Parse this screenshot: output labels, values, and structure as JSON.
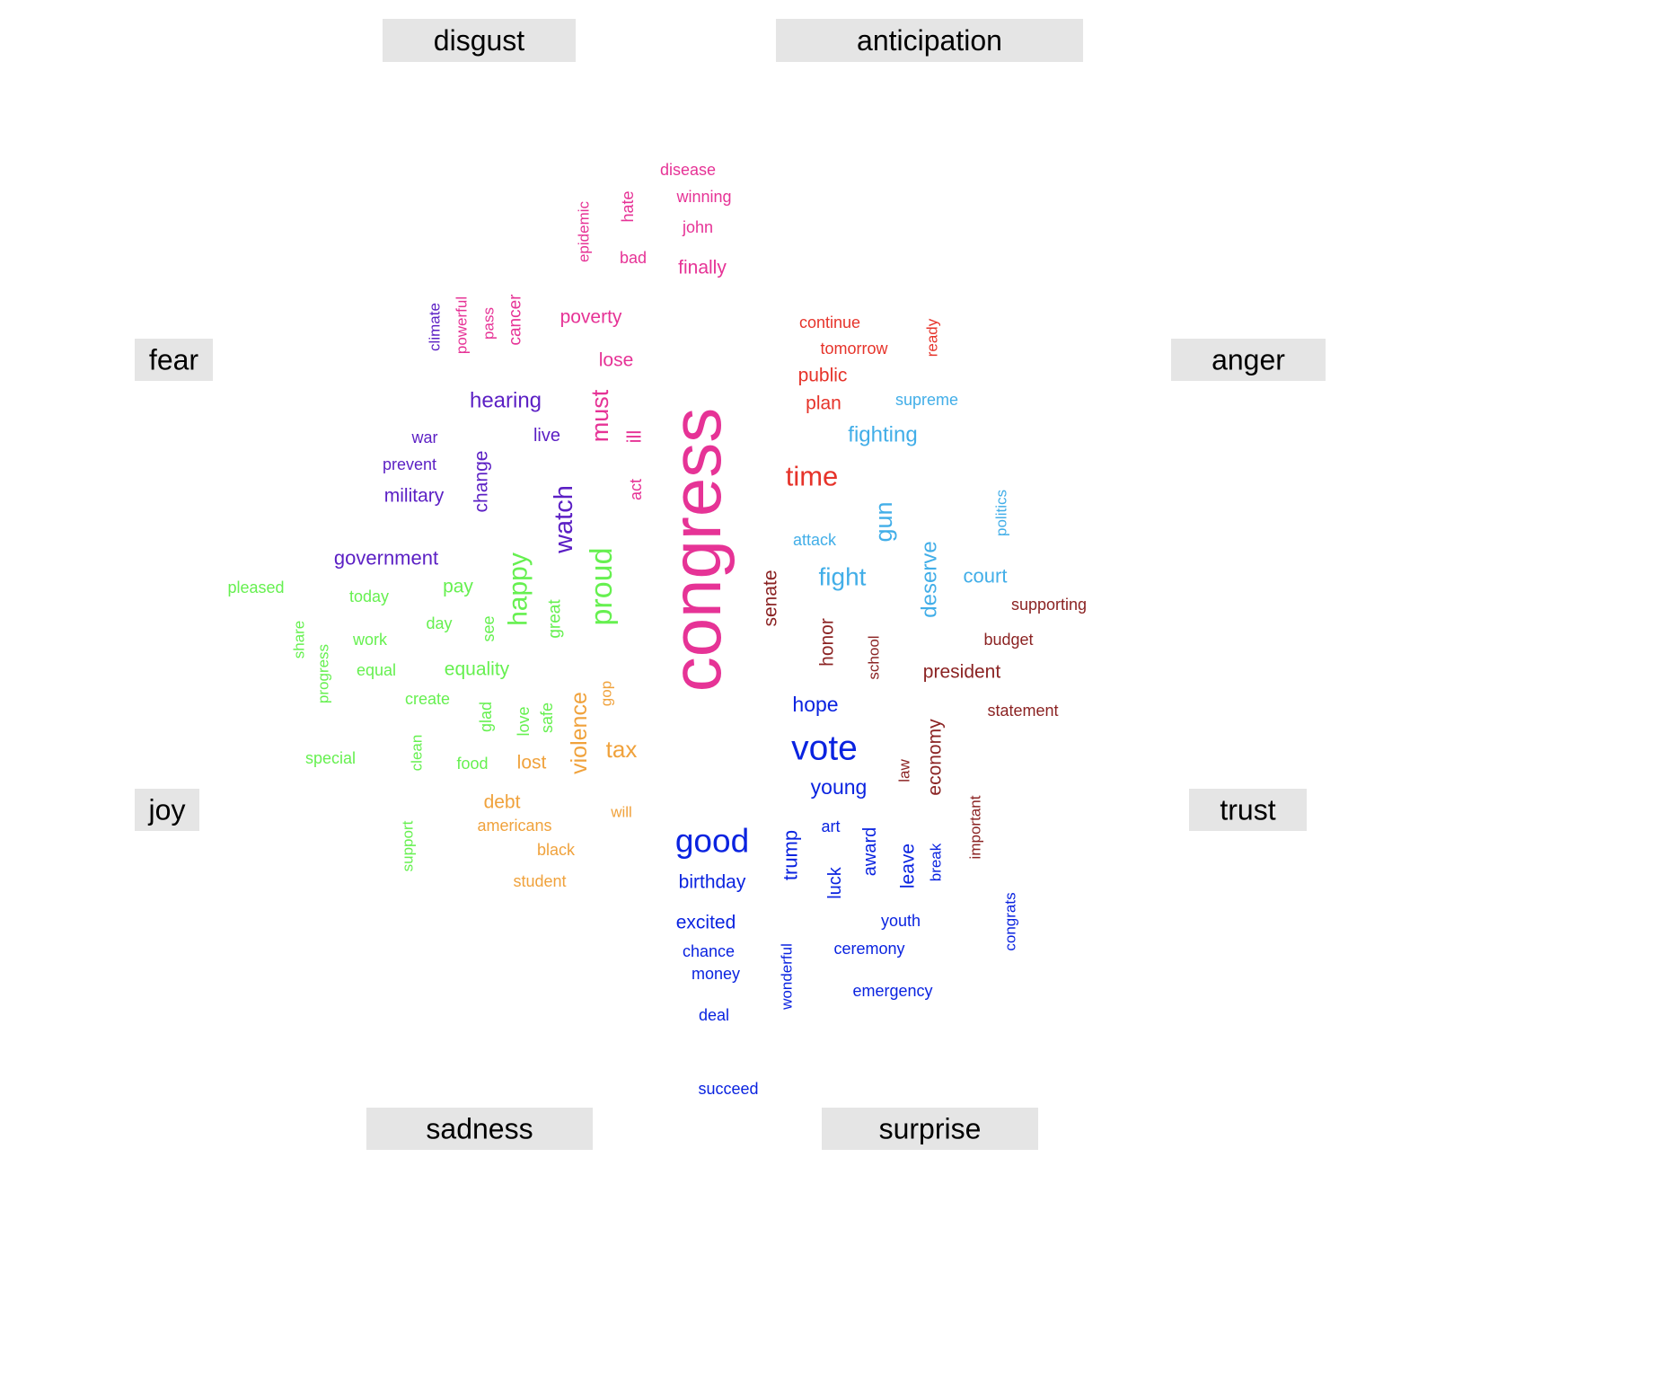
{
  "chart_data": {
    "type": "wordcloud",
    "colors": {
      "fear": "#5b1fc4",
      "disgust": "#e63396",
      "anticipation": "#e6332a",
      "anger": "#42aee8",
      "trust": "#8b2323",
      "surprise": "#0a23e0",
      "sadness": "#f0a23c",
      "joy": "#66f050"
    },
    "categories": [
      {
        "name": "disgust",
        "label": "disgust"
      },
      {
        "name": "anticipation",
        "label": "anticipation"
      },
      {
        "name": "fear",
        "label": "fear"
      },
      {
        "name": "anger",
        "label": "anger"
      },
      {
        "name": "joy",
        "label": "joy"
      },
      {
        "name": "trust",
        "label": "trust"
      },
      {
        "name": "sadness",
        "label": "sadness"
      },
      {
        "name": "surprise",
        "label": "surprise"
      }
    ],
    "words": [
      {
        "text": "congress",
        "group": "disgust",
        "size": 5
      },
      {
        "text": "disease",
        "group": "disgust",
        "size": 1
      },
      {
        "text": "winning",
        "group": "disgust",
        "size": 1
      },
      {
        "text": "hate",
        "group": "disgust",
        "size": 1
      },
      {
        "text": "john",
        "group": "disgust",
        "size": 1
      },
      {
        "text": "epidemic",
        "group": "disgust",
        "size": 1
      },
      {
        "text": "bad",
        "group": "disgust",
        "size": 1
      },
      {
        "text": "finally",
        "group": "disgust",
        "size": 1.3
      },
      {
        "text": "powerful",
        "group": "disgust",
        "size": 1
      },
      {
        "text": "pass",
        "group": "disgust",
        "size": 1
      },
      {
        "text": "cancer",
        "group": "disgust",
        "size": 1.1
      },
      {
        "text": "poverty",
        "group": "disgust",
        "size": 1.3
      },
      {
        "text": "lose",
        "group": "disgust",
        "size": 1.3
      },
      {
        "text": "must",
        "group": "disgust",
        "size": 1.6
      },
      {
        "text": "ill",
        "group": "disgust",
        "size": 1.3
      },
      {
        "text": "act",
        "group": "disgust",
        "size": 1
      },
      {
        "text": "climate",
        "group": "fear",
        "size": 1
      },
      {
        "text": "hearing",
        "group": "fear",
        "size": 1.5
      },
      {
        "text": "live",
        "group": "fear",
        "size": 1.3
      },
      {
        "text": "war",
        "group": "fear",
        "size": 1
      },
      {
        "text": "prevent",
        "group": "fear",
        "size": 1
      },
      {
        "text": "military",
        "group": "fear",
        "size": 1.3
      },
      {
        "text": "change",
        "group": "fear",
        "size": 1.3
      },
      {
        "text": "watch",
        "group": "fear",
        "size": 1.8
      },
      {
        "text": "government",
        "group": "fear",
        "size": 1.4
      },
      {
        "text": "continue",
        "group": "anticipation",
        "size": 1
      },
      {
        "text": "tomorrow",
        "group": "anticipation",
        "size": 1
      },
      {
        "text": "ready",
        "group": "anticipation",
        "size": 1
      },
      {
        "text": "public",
        "group": "anticipation",
        "size": 1.3
      },
      {
        "text": "plan",
        "group": "anticipation",
        "size": 1.3
      },
      {
        "text": "time",
        "group": "anticipation",
        "size": 2
      },
      {
        "text": "supreme",
        "group": "anger",
        "size": 1
      },
      {
        "text": "fighting",
        "group": "anger",
        "size": 1.5
      },
      {
        "text": "politics",
        "group": "anger",
        "size": 1
      },
      {
        "text": "attack",
        "group": "anger",
        "size": 1
      },
      {
        "text": "gun",
        "group": "anger",
        "size": 1.6
      },
      {
        "text": "fight",
        "group": "anger",
        "size": 1.8
      },
      {
        "text": "deserve",
        "group": "anger",
        "size": 1.5
      },
      {
        "text": "court",
        "group": "anger",
        "size": 1.4
      },
      {
        "text": "senate",
        "group": "trust",
        "size": 1.3
      },
      {
        "text": "supporting",
        "group": "trust",
        "size": 1
      },
      {
        "text": "budget",
        "group": "trust",
        "size": 1
      },
      {
        "text": "honor",
        "group": "trust",
        "size": 1.3
      },
      {
        "text": "school",
        "group": "trust",
        "size": 1
      },
      {
        "text": "president",
        "group": "trust",
        "size": 1.3
      },
      {
        "text": "statement",
        "group": "trust",
        "size": 1
      },
      {
        "text": "law",
        "group": "trust",
        "size": 1
      },
      {
        "text": "economy",
        "group": "trust",
        "size": 1.3
      },
      {
        "text": "important",
        "group": "trust",
        "size": 1
      },
      {
        "text": "hope",
        "group": "surprise",
        "size": 1.5
      },
      {
        "text": "vote",
        "group": "surprise",
        "size": 2.5
      },
      {
        "text": "young",
        "group": "surprise",
        "size": 1.5
      },
      {
        "text": "art",
        "group": "surprise",
        "size": 1
      },
      {
        "text": "good",
        "group": "surprise",
        "size": 2.4
      },
      {
        "text": "trump",
        "group": "surprise",
        "size": 1.4
      },
      {
        "text": "award",
        "group": "surprise",
        "size": 1.2
      },
      {
        "text": "leave",
        "group": "surprise",
        "size": 1.3
      },
      {
        "text": "break",
        "group": "surprise",
        "size": 1
      },
      {
        "text": "luck",
        "group": "surprise",
        "size": 1.2
      },
      {
        "text": "birthday",
        "group": "surprise",
        "size": 1.4
      },
      {
        "text": "excited",
        "group": "surprise",
        "size": 1.3
      },
      {
        "text": "youth",
        "group": "surprise",
        "size": 1
      },
      {
        "text": "congrats",
        "group": "surprise",
        "size": 1
      },
      {
        "text": "chance",
        "group": "surprise",
        "size": 1
      },
      {
        "text": "ceremony",
        "group": "surprise",
        "size": 1
      },
      {
        "text": "money",
        "group": "surprise",
        "size": 1
      },
      {
        "text": "wonderful",
        "group": "surprise",
        "size": 1
      },
      {
        "text": "emergency",
        "group": "surprise",
        "size": 1
      },
      {
        "text": "deal",
        "group": "surprise",
        "size": 1
      },
      {
        "text": "succeed",
        "group": "surprise",
        "size": 1
      },
      {
        "text": "gop",
        "group": "sadness",
        "size": 1
      },
      {
        "text": "violence",
        "group": "sadness",
        "size": 1.6
      },
      {
        "text": "tax",
        "group": "sadness",
        "size": 1.7
      },
      {
        "text": "lost",
        "group": "sadness",
        "size": 1.3
      },
      {
        "text": "debt",
        "group": "sadness",
        "size": 1.3
      },
      {
        "text": "americans",
        "group": "sadness",
        "size": 1
      },
      {
        "text": "will",
        "group": "sadness",
        "size": 1
      },
      {
        "text": "black",
        "group": "sadness",
        "size": 1
      },
      {
        "text": "student",
        "group": "sadness",
        "size": 1
      },
      {
        "text": "pleased",
        "group": "joy",
        "size": 1
      },
      {
        "text": "today",
        "group": "joy",
        "size": 1
      },
      {
        "text": "pay",
        "group": "joy",
        "size": 1.3
      },
      {
        "text": "happy",
        "group": "joy",
        "size": 1.9
      },
      {
        "text": "proud",
        "group": "joy",
        "size": 2.2
      },
      {
        "text": "day",
        "group": "joy",
        "size": 1
      },
      {
        "text": "great",
        "group": "joy",
        "size": 1.1
      },
      {
        "text": "see",
        "group": "joy",
        "size": 1
      },
      {
        "text": "share",
        "group": "joy",
        "size": 1
      },
      {
        "text": "work",
        "group": "joy",
        "size": 1
      },
      {
        "text": "progress",
        "group": "joy",
        "size": 1
      },
      {
        "text": "equal",
        "group": "joy",
        "size": 1
      },
      {
        "text": "equality",
        "group": "joy",
        "size": 1.3
      },
      {
        "text": "create",
        "group": "joy",
        "size": 1
      },
      {
        "text": "glad",
        "group": "joy",
        "size": 1
      },
      {
        "text": "love",
        "group": "joy",
        "size": 1
      },
      {
        "text": "safe",
        "group": "joy",
        "size": 1
      },
      {
        "text": "special",
        "group": "joy",
        "size": 1
      },
      {
        "text": "clean",
        "group": "joy",
        "size": 1
      },
      {
        "text": "food",
        "group": "joy",
        "size": 1
      },
      {
        "text": "support",
        "group": "joy",
        "size": 1
      }
    ]
  }
}
